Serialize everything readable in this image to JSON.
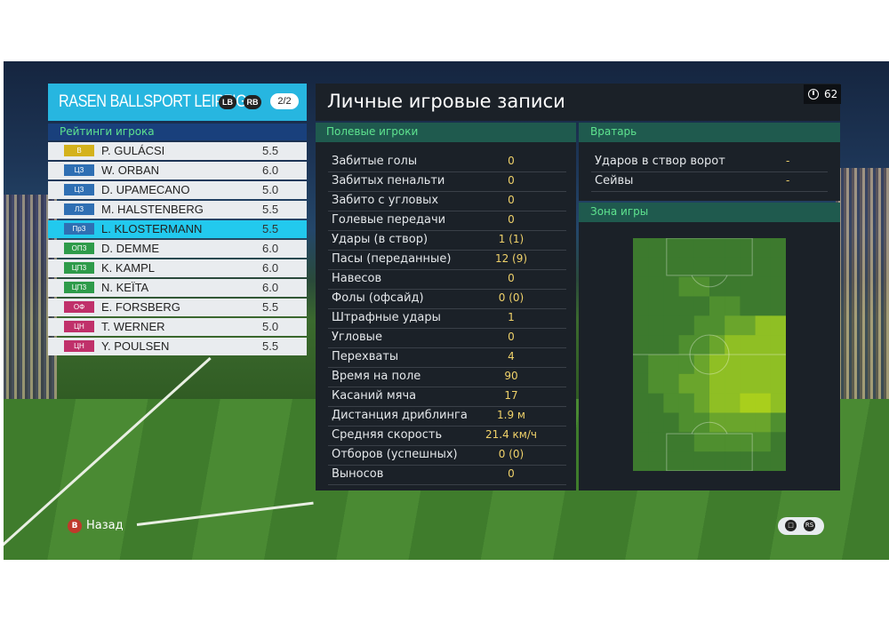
{
  "team": {
    "name": "RASEN BALLSPORT LEIPZIG",
    "bumper_left": "LB",
    "bumper_right": "RB",
    "page": "2/2"
  },
  "ratings_header": "Рейтинги игрока",
  "players": [
    {
      "pos": "В",
      "pos_color": "#d4b21c",
      "name": "P. GULÁCSI",
      "rating": "5.5",
      "selected": false
    },
    {
      "pos": "ЦЗ",
      "pos_color": "#2f6fb3",
      "name": "W. ORBAN",
      "rating": "6.0",
      "selected": false
    },
    {
      "pos": "ЦЗ",
      "pos_color": "#2f6fb3",
      "name": "D. UPAMECANO",
      "rating": "5.0",
      "selected": false
    },
    {
      "pos": "ЛЗ",
      "pos_color": "#2f6fb3",
      "name": "M. HALSTENBERG",
      "rating": "5.5",
      "selected": false
    },
    {
      "pos": "ПрЗ",
      "pos_color": "#2f6fb3",
      "name": "L. KLOSTERMANN",
      "rating": "5.5",
      "selected": true
    },
    {
      "pos": "ОПЗ",
      "pos_color": "#2e9b4a",
      "name": "D. DEMME",
      "rating": "6.0",
      "selected": false
    },
    {
      "pos": "ЦПЗ",
      "pos_color": "#2e9b4a",
      "name": "K. KAMPL",
      "rating": "6.0",
      "selected": false
    },
    {
      "pos": "ЦПЗ",
      "pos_color": "#2e9b4a",
      "name": "N. KEÏTA",
      "rating": "6.0",
      "selected": false
    },
    {
      "pos": "ОФ",
      "pos_color": "#c0306a",
      "name": "E. FORSBERG",
      "rating": "5.5",
      "selected": false
    },
    {
      "pos": "ЦН",
      "pos_color": "#c0306a",
      "name": "T. WERNER",
      "rating": "5.0",
      "selected": false
    },
    {
      "pos": "ЦН",
      "pos_color": "#c0306a",
      "name": "Y. POULSEN",
      "rating": "5.5",
      "selected": false
    }
  ],
  "main_title": "Личные игровые записи",
  "timer": "62",
  "field_players": {
    "title": "Полевые игроки",
    "stats": [
      {
        "label": "Забитые голы",
        "value": "0"
      },
      {
        "label": "Забитых пенальти",
        "value": "0"
      },
      {
        "label": "Забито с угловых",
        "value": "0"
      },
      {
        "label": "Голевые передачи",
        "value": "0"
      },
      {
        "label": "Удары (в створ)",
        "value": "1 (1)"
      },
      {
        "label": "Пасы (переданные)",
        "value": "12 (9)"
      },
      {
        "label": "Навесов",
        "value": "0"
      },
      {
        "label": "Фолы (офсайд)",
        "value": "0 (0)"
      },
      {
        "label": "Штрафные удары",
        "value": "1"
      },
      {
        "label": "Угловые",
        "value": "0"
      },
      {
        "label": "Перехваты",
        "value": "4"
      },
      {
        "label": "Время на поле",
        "value": "90"
      },
      {
        "label": "Касаний мяча",
        "value": "17"
      },
      {
        "label": "Дистанция дриблинга",
        "value": "1.9 м"
      },
      {
        "label": "Средняя скорость",
        "value": "21.4 км/ч"
      },
      {
        "label": "Отборов (успешных)",
        "value": "0 (0)"
      },
      {
        "label": "Выносов",
        "value": "0"
      }
    ]
  },
  "goalkeeper": {
    "title": "Вратарь",
    "stats": [
      {
        "label": "Ударов в створ ворот",
        "value": "-"
      },
      {
        "label": "Сейвы",
        "value": "-"
      }
    ]
  },
  "zone": {
    "title": "Зона игры",
    "cols": 10,
    "rows": 12,
    "grid": [
      [
        0,
        0,
        0,
        0,
        0,
        0,
        0,
        0,
        0,
        0
      ],
      [
        0,
        0,
        0,
        0,
        0,
        0,
        0,
        0,
        0,
        0
      ],
      [
        0,
        0,
        0,
        1,
        1,
        0,
        0,
        0,
        0,
        0
      ],
      [
        0,
        0,
        0,
        0,
        0,
        1,
        1,
        0,
        0,
        0
      ],
      [
        0,
        0,
        0,
        0,
        1,
        1,
        2,
        2,
        3,
        3
      ],
      [
        0,
        0,
        0,
        1,
        1,
        2,
        3,
        3,
        3,
        3
      ],
      [
        0,
        1,
        1,
        1,
        2,
        3,
        3,
        3,
        3,
        3
      ],
      [
        0,
        1,
        1,
        2,
        2,
        3,
        3,
        3,
        3,
        3
      ],
      [
        0,
        0,
        1,
        1,
        2,
        3,
        3,
        4,
        4,
        3
      ],
      [
        0,
        0,
        0,
        1,
        1,
        2,
        2,
        2,
        2,
        1
      ],
      [
        0,
        0,
        0,
        0,
        1,
        1,
        1,
        1,
        1,
        0
      ],
      [
        0,
        0,
        0,
        0,
        0,
        0,
        0,
        0,
        0,
        0
      ]
    ],
    "palette": [
      "#3d7a2e",
      "#4f8f2f",
      "#6aa52c",
      "#8fbf24",
      "#a9cf1c"
    ]
  },
  "footer": {
    "back_button": "B",
    "back_label": "Назад",
    "right_button_1": "RS",
    "icon_name": "chat-icon"
  }
}
